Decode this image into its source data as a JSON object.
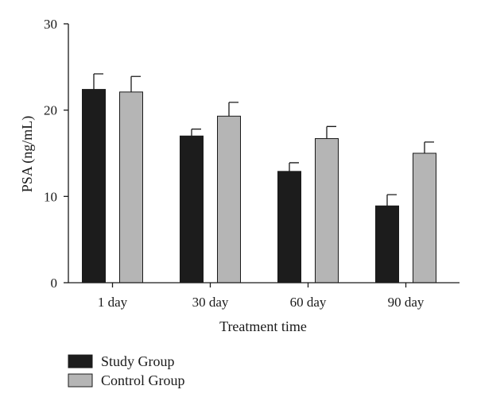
{
  "chart_data": {
    "type": "bar",
    "title": "",
    "xlabel": "Treatment time",
    "ylabel": "PSA (ng/mL)",
    "ylim": [
      0,
      30
    ],
    "yticks": [
      0,
      10,
      20,
      30
    ],
    "categories": [
      "1 day",
      "30 day",
      "60 day",
      "90 day"
    ],
    "series": [
      {
        "name": "Study Group",
        "color": "#1c1c1c",
        "values": [
          22.4,
          17.0,
          12.9,
          8.9
        ],
        "errors": [
          1.8,
          0.8,
          1.0,
          1.3
        ]
      },
      {
        "name": "Control Group",
        "color": "#b5b5b5",
        "values": [
          22.1,
          19.3,
          16.7,
          15.0
        ],
        "errors": [
          1.8,
          1.6,
          1.4,
          1.3
        ]
      }
    ],
    "grid": false,
    "legend_position": "bottom-left"
  }
}
